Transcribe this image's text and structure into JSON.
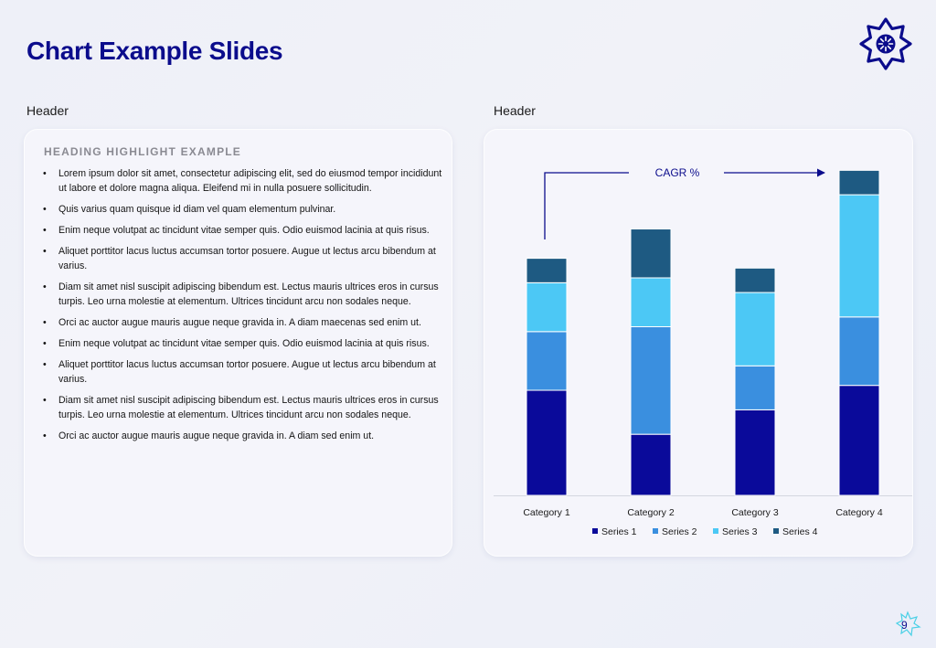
{
  "title": "Chart Example Slides",
  "left_panel": {
    "header": "Header",
    "heading": "HEADING HIGHLIGHT EXAMPLE",
    "bullets": [
      "Lorem ipsum dolor sit amet, consectetur adipiscing elit, sed do eiusmod tempor incididunt ut labore et dolore magna aliqua. Eleifend mi in nulla posuere sollicitudin.",
      "Quis varius quam quisque id diam vel quam elementum pulvinar.",
      "Enim neque volutpat ac tincidunt vitae semper quis. Odio euismod lacinia at quis risus.",
      "Aliquet porttitor lacus luctus accumsan tortor posuere. Augue ut lectus arcu bibendum at varius.",
      "Diam sit amet nisl suscipit adipiscing bibendum est. Lectus mauris ultrices eros in cursus turpis. Leo urna molestie at elementum. Ultrices tincidunt arcu non sodales neque.",
      "Orci ac auctor augue mauris augue neque gravida in. A diam maecenas sed enim ut.",
      "Enim neque volutpat ac tincidunt vitae semper quis. Odio euismod lacinia at quis risus.",
      "Aliquet porttitor lacus luctus accumsan tortor posuere. Augue ut lectus arcu bibendum at varius.",
      "Diam sit amet nisl suscipit adipiscing bibendum est. Lectus mauris ultrices eros in cursus turpis. Leo urna molestie at elementum. Ultrices tincidunt arcu non sodales neque.",
      "Orci ac auctor augue mauris augue neque gravida in. A diam sed enim ut."
    ]
  },
  "right_panel": {
    "header": "Header"
  },
  "chart_data": {
    "type": "bar",
    "stacked": true,
    "categories": [
      "Category 1",
      "Category 2",
      "Category 3",
      "Category 4"
    ],
    "series": [
      {
        "name": "Series 1",
        "values": [
          4.3,
          2.5,
          3.5,
          4.5
        ],
        "color": "#0a0a9a"
      },
      {
        "name": "Series 2",
        "values": [
          2.4,
          4.4,
          1.8,
          2.8
        ],
        "color": "#3a8fdf"
      },
      {
        "name": "Series 3",
        "values": [
          2.0,
          2.0,
          3.0,
          5.0
        ],
        "color": "#4cc8f5"
      },
      {
        "name": "Series 4",
        "values": [
          1.0,
          2.0,
          1.0,
          1.0
        ],
        "color": "#1e5a82"
      }
    ],
    "annotation": "CAGR %",
    "legend_position": "bottom",
    "grid": false,
    "ylim": [
      0,
      13.5
    ]
  },
  "page_number": "9",
  "colors": {
    "title": "#0b0c8c",
    "accent": "#0b0c8c",
    "page_number_star": "#4ad0e6"
  }
}
